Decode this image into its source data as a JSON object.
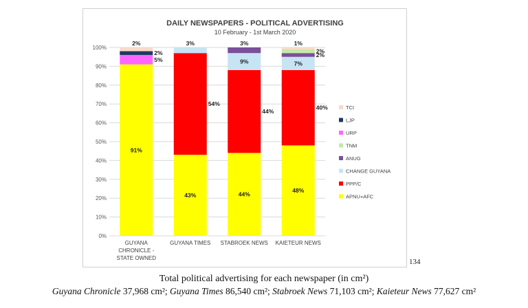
{
  "chart_data": {
    "type": "stacked-bar",
    "title": "DAILY NEWSPAPERS - POLITICAL ADVERTISING",
    "subtitle": "10 February - 1st March 2020",
    "categories": [
      "GUYANA CHRONICLE - STATE OWNED",
      "GUYANA TIMES",
      "STABROEK NEWS",
      "KAIETEUR NEWS"
    ],
    "category_lines": [
      [
        "GUYANA",
        "CHRONICLE -",
        "STATE OWNED"
      ],
      [
        "GUYANA TIMES"
      ],
      [
        "STABROEK NEWS"
      ],
      [
        "KAIETEUR NEWS"
      ]
    ],
    "yticks": [
      "0%",
      "10%",
      "20%",
      "30%",
      "40%",
      "50%",
      "60%",
      "70%",
      "80%",
      "90%",
      "100%"
    ],
    "ylim": [
      0,
      100
    ],
    "series": [
      {
        "name": "APNU+AFC",
        "color": "#ffff00",
        "values": [
          91,
          43,
          44,
          48
        ]
      },
      {
        "name": "PPP/C",
        "color": "#ff0000",
        "values": [
          0,
          54,
          44,
          40
        ]
      },
      {
        "name": "CHANGE GUYANA",
        "color": "#c6e4f4",
        "values": [
          0,
          3,
          9,
          7
        ]
      },
      {
        "name": "ANUG",
        "color": "#7a4f9b",
        "values": [
          0,
          0,
          3,
          2
        ]
      },
      {
        "name": "TNM",
        "color": "#c5e9a8",
        "values": [
          0,
          0,
          0,
          2
        ]
      },
      {
        "name": "URP",
        "color": "#ff66ff",
        "values": [
          5,
          0,
          0,
          0
        ]
      },
      {
        "name": "LJP",
        "color": "#1f3864",
        "values": [
          2,
          0,
          0,
          0
        ]
      },
      {
        "name": "TCI",
        "color": "#f8d9c8",
        "values": [
          2,
          0,
          0,
          1
        ]
      }
    ],
    "legend_order": [
      "TCI",
      "LJP",
      "URP",
      "TNM",
      "ANUG",
      "CHANGE GUYANA",
      "PPP/C",
      "APNU+AFC"
    ],
    "legend_position": "right",
    "data_labels": [
      {
        "category": 0,
        "series": "APNU+AFC",
        "text": "91%"
      },
      {
        "category": 0,
        "series": "URP",
        "text": "5%",
        "side": "right"
      },
      {
        "category": 0,
        "series": "LJP",
        "text": "2%",
        "side": "right"
      },
      {
        "category": 0,
        "series": "TCI",
        "text": "2%",
        "side": "top"
      },
      {
        "category": 1,
        "series": "APNU+AFC",
        "text": "43%"
      },
      {
        "category": 1,
        "series": "PPP/C",
        "text": "54%",
        "side": "right"
      },
      {
        "category": 1,
        "series": "CHANGE GUYANA",
        "text": "3%",
        "side": "top"
      },
      {
        "category": 2,
        "series": "APNU+AFC",
        "text": "44%"
      },
      {
        "category": 2,
        "series": "PPP/C",
        "text": "44%",
        "side": "right"
      },
      {
        "category": 2,
        "series": "CHANGE GUYANA",
        "text": "9%"
      },
      {
        "category": 2,
        "series": "ANUG",
        "text": "3%",
        "side": "top"
      },
      {
        "category": 3,
        "series": "APNU+AFC",
        "text": "48%"
      },
      {
        "category": 3,
        "series": "PPP/C",
        "text": "40%",
        "side": "right"
      },
      {
        "category": 3,
        "series": "CHANGE GUYANA",
        "text": "7%"
      },
      {
        "category": 3,
        "series": "ANUG",
        "text": "2%",
        "side": "right"
      },
      {
        "category": 3,
        "series": "TNM",
        "text": "2%",
        "side": "right"
      },
      {
        "category": 3,
        "series": "TCI",
        "text": "1%",
        "side": "top"
      }
    ],
    "gridlines": true
  },
  "page_number": "134",
  "caption": {
    "line1": "Total political advertising for each newspaper (in cm²)",
    "line2": [
      {
        "name": "Guyana Chronicle",
        "value": " 37,968 cm²; "
      },
      {
        "name": "Guyana Times",
        "value": " 86,540 cm²; "
      },
      {
        "name": "Stabroek News",
        "value": " 71,103 cm²; "
      },
      {
        "name": "Kaieteur News",
        "value": " 77,627 cm²"
      }
    ]
  }
}
